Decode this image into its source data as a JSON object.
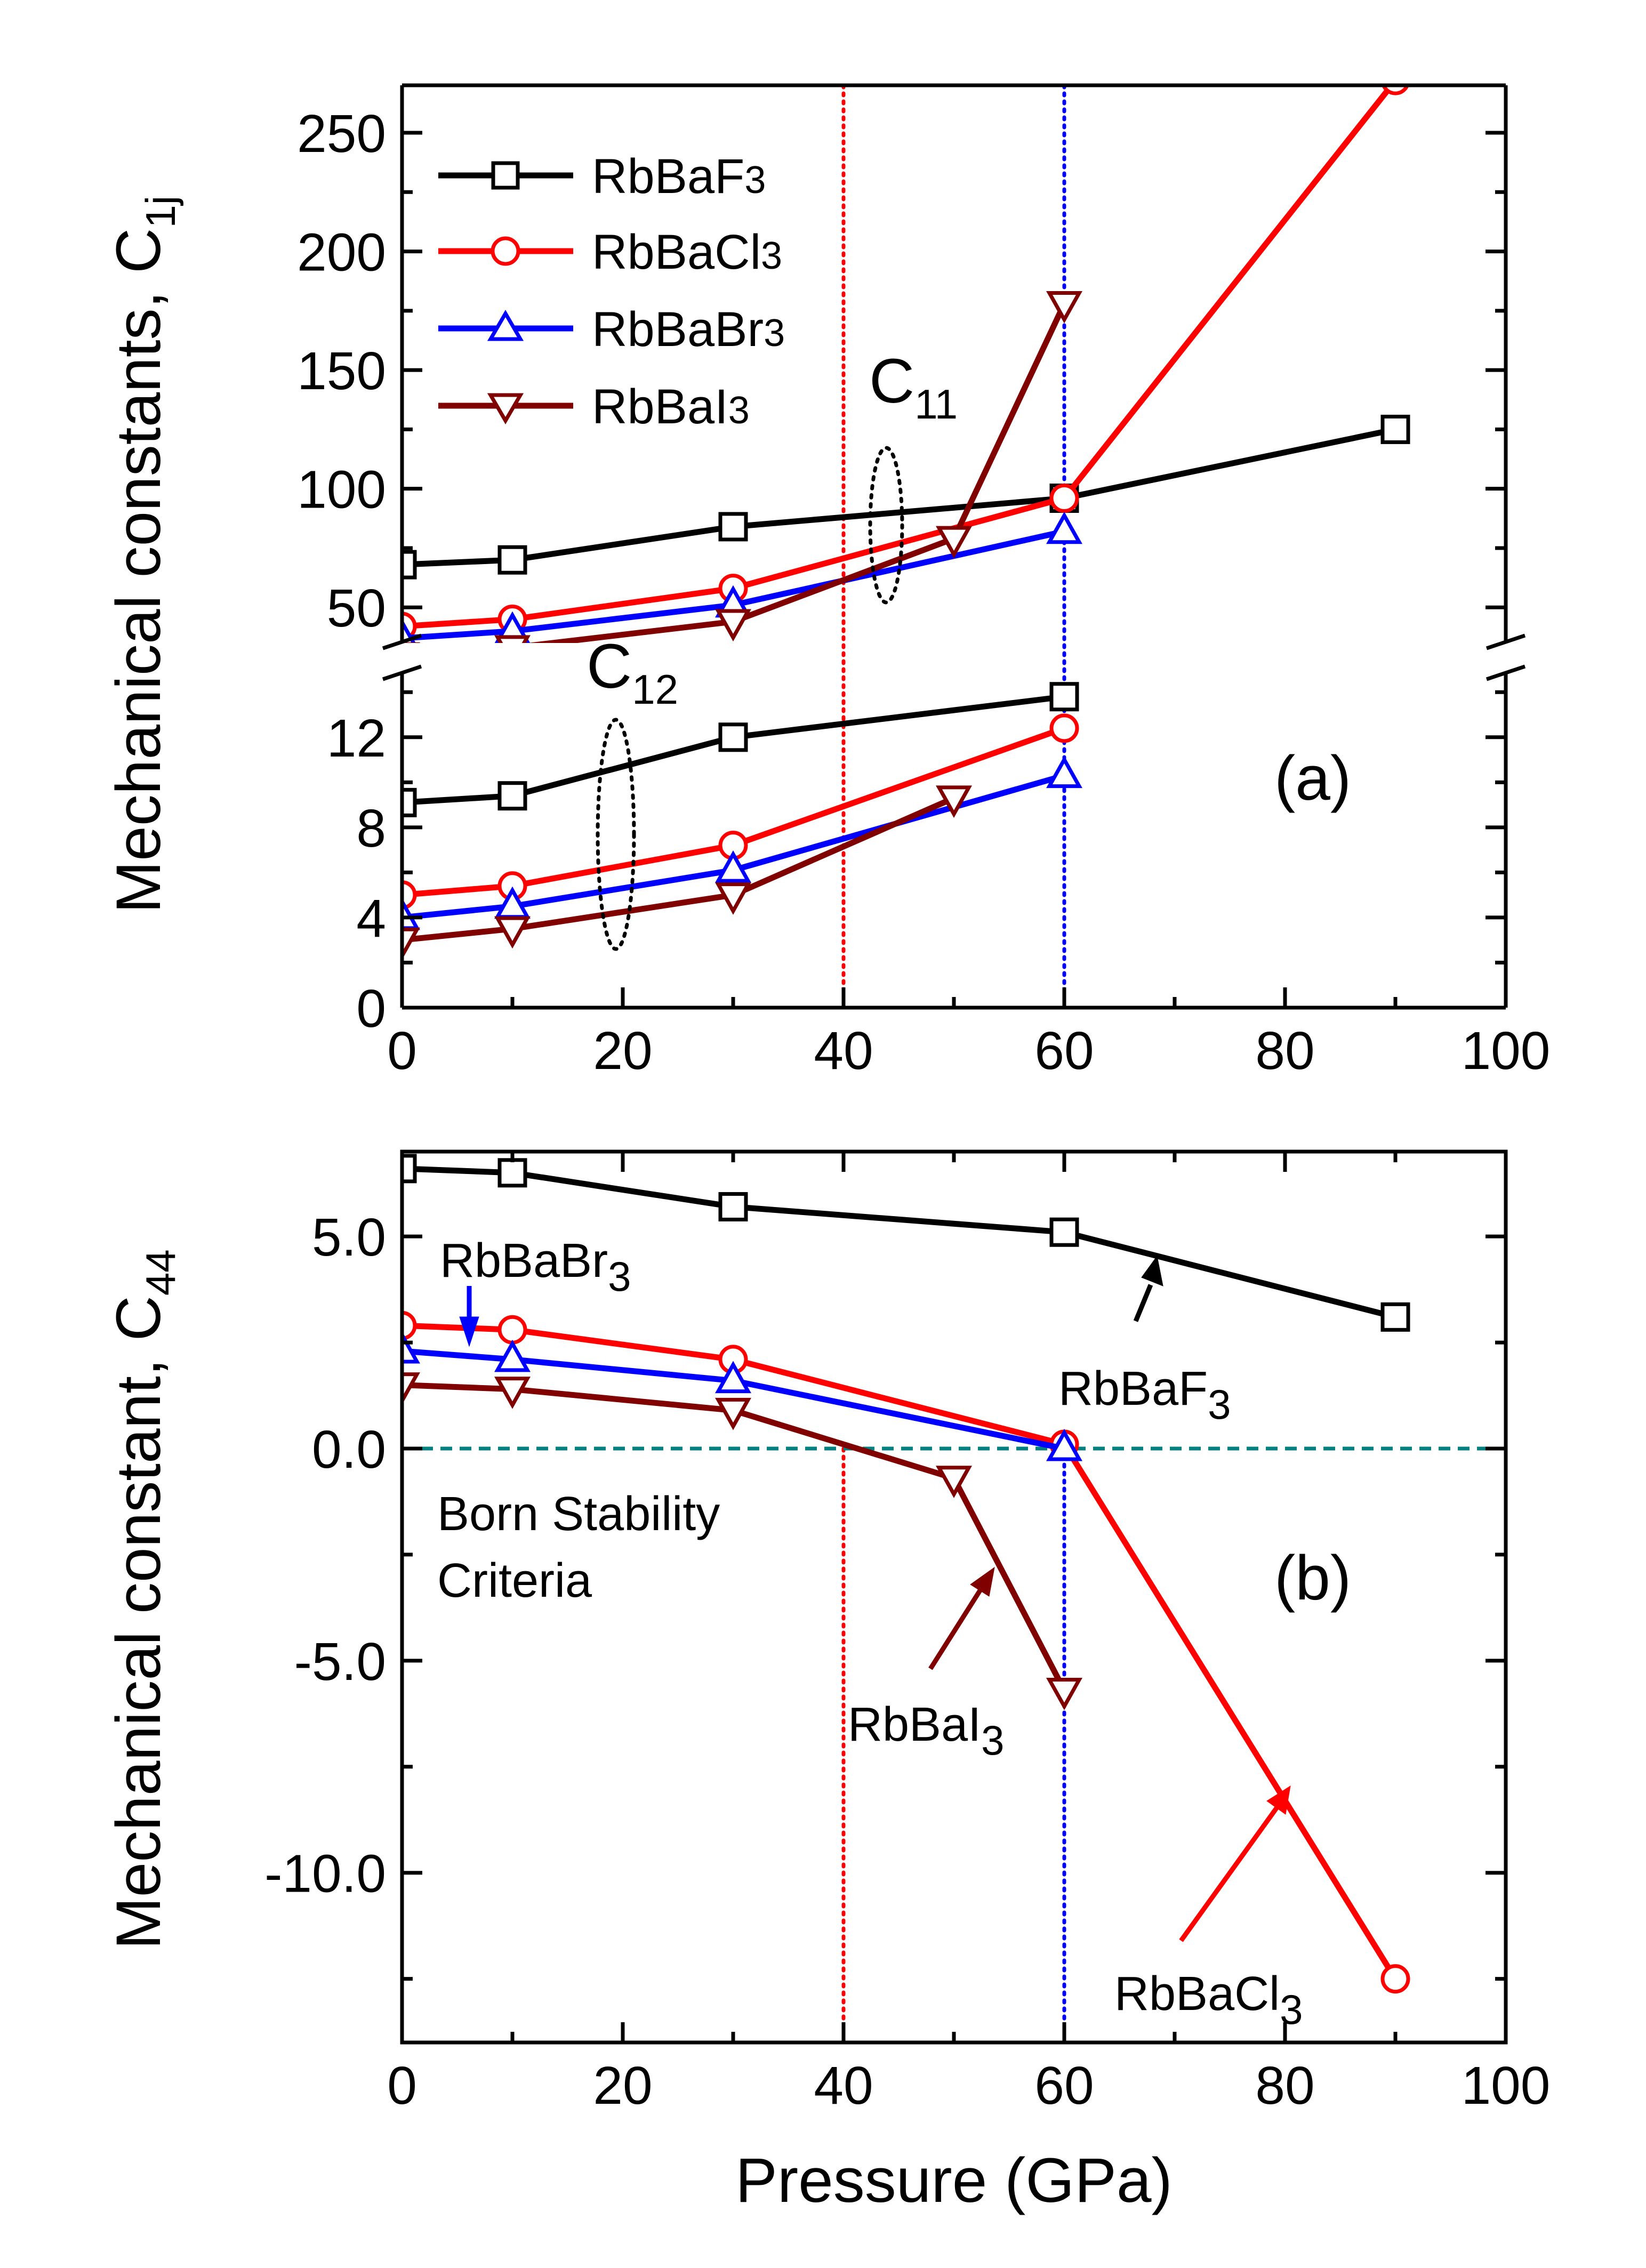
{
  "colors": {
    "RbBaF3": "#000000",
    "RbBaCl3": "#ff0000",
    "RbBaBr3": "#0000ff",
    "RbBaI3": "#800000",
    "born_line": "#008080",
    "vline_40": "#ff0000",
    "vline_60": "#0000ff"
  },
  "chart_data": [
    {
      "panel": "(a)",
      "type": "line",
      "xlabel": "",
      "ylabel": "Mechanical constants, C",
      "ylabel_sub": "1j",
      "xlim": [
        0,
        100
      ],
      "xticks": [
        "0",
        "20",
        "40",
        "60",
        "80",
        "100"
      ],
      "segments": {
        "upper": {
          "ylim": [
            35,
            270
          ],
          "yticks": [
            "50",
            "100",
            "150",
            "200",
            "250"
          ]
        },
        "lower": {
          "ylim": [
            0,
            15
          ],
          "yticks": [
            "0",
            "4",
            "8",
            "12"
          ]
        }
      },
      "legend": [
        "RbBaF3",
        "RbBaCl3",
        "RbBaBr3",
        "RbBaI3"
      ],
      "legend_position": "top-left",
      "annotations": {
        "c11": "C",
        "c11_sub": "11",
        "c12": "C",
        "c12_sub": "12",
        "panel_label": "(a)"
      },
      "vlines": [
        40,
        60
      ],
      "series": [
        {
          "name": "RbBaF3",
          "group": "C11",
          "marker": "square",
          "x": [
            0,
            10,
            30,
            60,
            90
          ],
          "y": [
            68,
            70,
            84,
            96,
            125
          ]
        },
        {
          "name": "RbBaCl3",
          "group": "C11",
          "marker": "circle",
          "x": [
            0,
            10,
            30,
            60,
            90
          ],
          "y": [
            42,
            45,
            58,
            96,
            272
          ]
        },
        {
          "name": "RbBaBr3",
          "group": "C11",
          "marker": "triangle-up",
          "x": [
            0,
            10,
            30,
            60
          ],
          "y": [
            37,
            40,
            51,
            82
          ]
        },
        {
          "name": "RbBaI3",
          "group": "C11",
          "marker": "triangle-down",
          "x": [
            0,
            10,
            30,
            50,
            60
          ],
          "y": [
            30,
            33,
            44,
            79,
            178
          ]
        },
        {
          "name": "RbBaF3",
          "group": "C12",
          "marker": "square",
          "x": [
            0,
            10,
            30,
            60
          ],
          "y": [
            9.1,
            9.4,
            12.0,
            13.8
          ]
        },
        {
          "name": "RbBaCl3",
          "group": "C12",
          "marker": "circle",
          "x": [
            0,
            10,
            30,
            60
          ],
          "y": [
            5.0,
            5.4,
            7.2,
            12.4
          ]
        },
        {
          "name": "RbBaBr3",
          "group": "C12",
          "marker": "triangle-up",
          "x": [
            0,
            10,
            30,
            60
          ],
          "y": [
            4.0,
            4.5,
            6.1,
            10.3
          ]
        },
        {
          "name": "RbBaI3",
          "group": "C12",
          "marker": "triangle-down",
          "x": [
            0,
            10,
            30,
            50
          ],
          "y": [
            3.0,
            3.5,
            5.0,
            9.3
          ]
        }
      ]
    },
    {
      "panel": "(b)",
      "type": "line",
      "xlabel": "Pressure (GPa)",
      "ylabel": "Mechanical constant, C",
      "ylabel_sub": "44",
      "xlim": [
        0,
        100
      ],
      "ylim": [
        -14,
        7
      ],
      "xticks": [
        "0",
        "20",
        "40",
        "60",
        "80",
        "100"
      ],
      "yticks": [
        "-10.0",
        "-5.0",
        "0.0",
        "5.0"
      ],
      "hline": 0,
      "vlines": [
        40,
        60
      ],
      "annotations": {
        "panel_label": "(b)",
        "born_line1": "Born Stability",
        "born_line2": "Criteria",
        "label_F": "RbBaF",
        "label_Br": "RbBaBr",
        "label_I": "RbBaI",
        "label_Cl": "RbBaCl",
        "subscript": "3"
      },
      "series": [
        {
          "name": "RbBaF3",
          "marker": "square",
          "x": [
            0,
            10,
            30,
            60,
            90
          ],
          "y": [
            6.6,
            6.5,
            5.7,
            5.1,
            3.1
          ]
        },
        {
          "name": "RbBaCl3",
          "marker": "circle",
          "x": [
            0,
            10,
            30,
            60,
            90
          ],
          "y": [
            2.9,
            2.8,
            2.1,
            0.1,
            -12.5
          ]
        },
        {
          "name": "RbBaBr3",
          "marker": "triangle-up",
          "x": [
            0,
            10,
            30,
            60
          ],
          "y": [
            2.3,
            2.1,
            1.6,
            0.0
          ]
        },
        {
          "name": "RbBaI3",
          "marker": "triangle-down",
          "x": [
            0,
            10,
            30,
            50,
            60
          ],
          "y": [
            1.5,
            1.4,
            0.9,
            -0.7,
            -5.7
          ]
        }
      ]
    }
  ]
}
